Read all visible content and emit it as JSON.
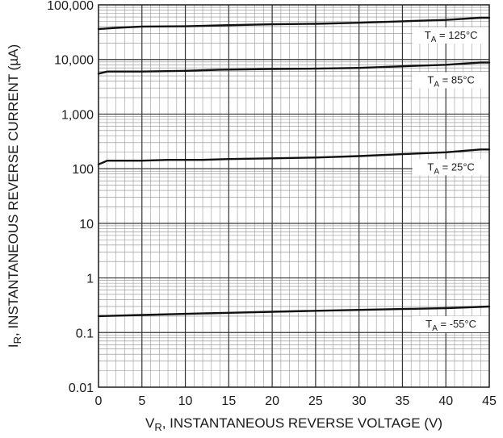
{
  "chart_data": {
    "type": "line",
    "title": "",
    "xlabel": {
      "main": "V",
      "sub": "R",
      "rest": ", INSTANTANEOUS REVERSE VOLTAGE (V)"
    },
    "ylabel": {
      "main": "I",
      "sub": "R",
      "rest": ", INSTANTANEOUS REVERSE CURRENT (µA)"
    },
    "xlim": [
      0,
      45
    ],
    "ylim": [
      0.01,
      100000
    ],
    "yscale": "log",
    "grid": true,
    "x_ticks": [
      0,
      5,
      10,
      15,
      20,
      25,
      30,
      35,
      40,
      45
    ],
    "x_tick_labels": [
      "0",
      "5",
      "10",
      "15",
      "20",
      "25",
      "30",
      "35",
      "40",
      "45"
    ],
    "y_ticks": [
      0.01,
      0.1,
      1,
      10,
      100,
      1000,
      10000,
      100000
    ],
    "y_tick_labels": [
      "0.01",
      "0.1",
      "1",
      "10",
      "100",
      "1,000",
      "10,000",
      "100,000"
    ],
    "series": [
      {
        "name": "T_A = 125°C",
        "label": {
          "main": "T",
          "sub": "A",
          "rest": " = 125°C"
        },
        "x": [
          0,
          2,
          5,
          10,
          14,
          20,
          25,
          30,
          35,
          40,
          44,
          45
        ],
        "y": [
          36000,
          38000,
          40000,
          40500,
          42000,
          44000,
          45000,
          47000,
          50000,
          53000,
          58000,
          58000
        ]
      },
      {
        "name": "T_A = 85°C",
        "label": {
          "main": "T",
          "sub": "A",
          "rest": " = 85°C"
        },
        "x": [
          0,
          1,
          5,
          10,
          14,
          20,
          25,
          30,
          35,
          40,
          44,
          45
        ],
        "y": [
          5500,
          6000,
          6000,
          6200,
          6500,
          6700,
          6800,
          7000,
          7500,
          8000,
          8800,
          8800
        ]
      },
      {
        "name": "T_A = 25°C",
        "label": {
          "main": "T",
          "sub": "A",
          "rest": " = 25°C"
        },
        "x": [
          0,
          1,
          5,
          8,
          12,
          15,
          20,
          25,
          30,
          35,
          40,
          44,
          45
        ],
        "y": [
          120,
          140,
          140,
          145,
          145,
          150,
          155,
          160,
          170,
          185,
          200,
          225,
          225
        ]
      },
      {
        "name": "T_A = -55°C",
        "label": {
          "main": "T",
          "sub": "A",
          "rest": " = -55°C"
        },
        "x": [
          0,
          5,
          10,
          15,
          20,
          25,
          30,
          35,
          40,
          45
        ],
        "y": [
          0.2,
          0.21,
          0.22,
          0.23,
          0.24,
          0.25,
          0.26,
          0.27,
          0.28,
          0.3
        ]
      }
    ]
  }
}
